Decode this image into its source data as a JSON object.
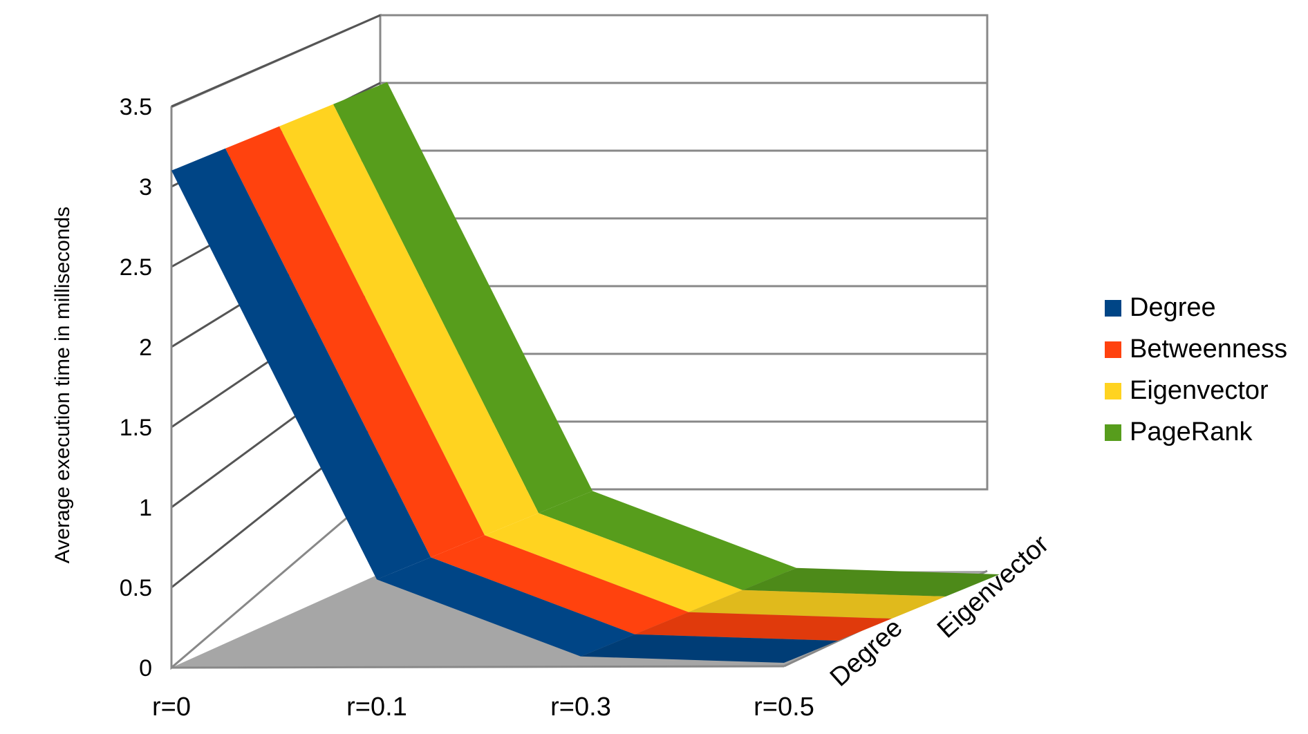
{
  "chart_data": {
    "type": "area",
    "title": "",
    "xlabel": "",
    "ylabel": "Average execution time in milliseconds",
    "ylim": [
      0,
      3.5
    ],
    "yticks": [
      "0",
      "0.5",
      "1",
      "1.5",
      "2",
      "2.5",
      "3",
      "3.5"
    ],
    "categories": [
      "r=0",
      "r=0.1",
      "r=0.3",
      "r=0.5"
    ],
    "depth_labels": [
      "Degree",
      "Eigenvector"
    ],
    "grid": true,
    "legend_position": "right",
    "series": [
      {
        "name": "Degree",
        "color": "#004586",
        "values": [
          3.1,
          0.55,
          0.07,
          0.03
        ]
      },
      {
        "name": "Betweenness",
        "color": "#ff420e",
        "values": [
          3.1,
          0.55,
          0.07,
          0.03
        ]
      },
      {
        "name": "Eigenvector",
        "color": "#ffd320",
        "values": [
          3.1,
          0.55,
          0.07,
          0.03
        ]
      },
      {
        "name": "PageRank",
        "color": "#579d1c",
        "values": [
          3.1,
          0.55,
          0.07,
          0.03
        ]
      }
    ]
  }
}
